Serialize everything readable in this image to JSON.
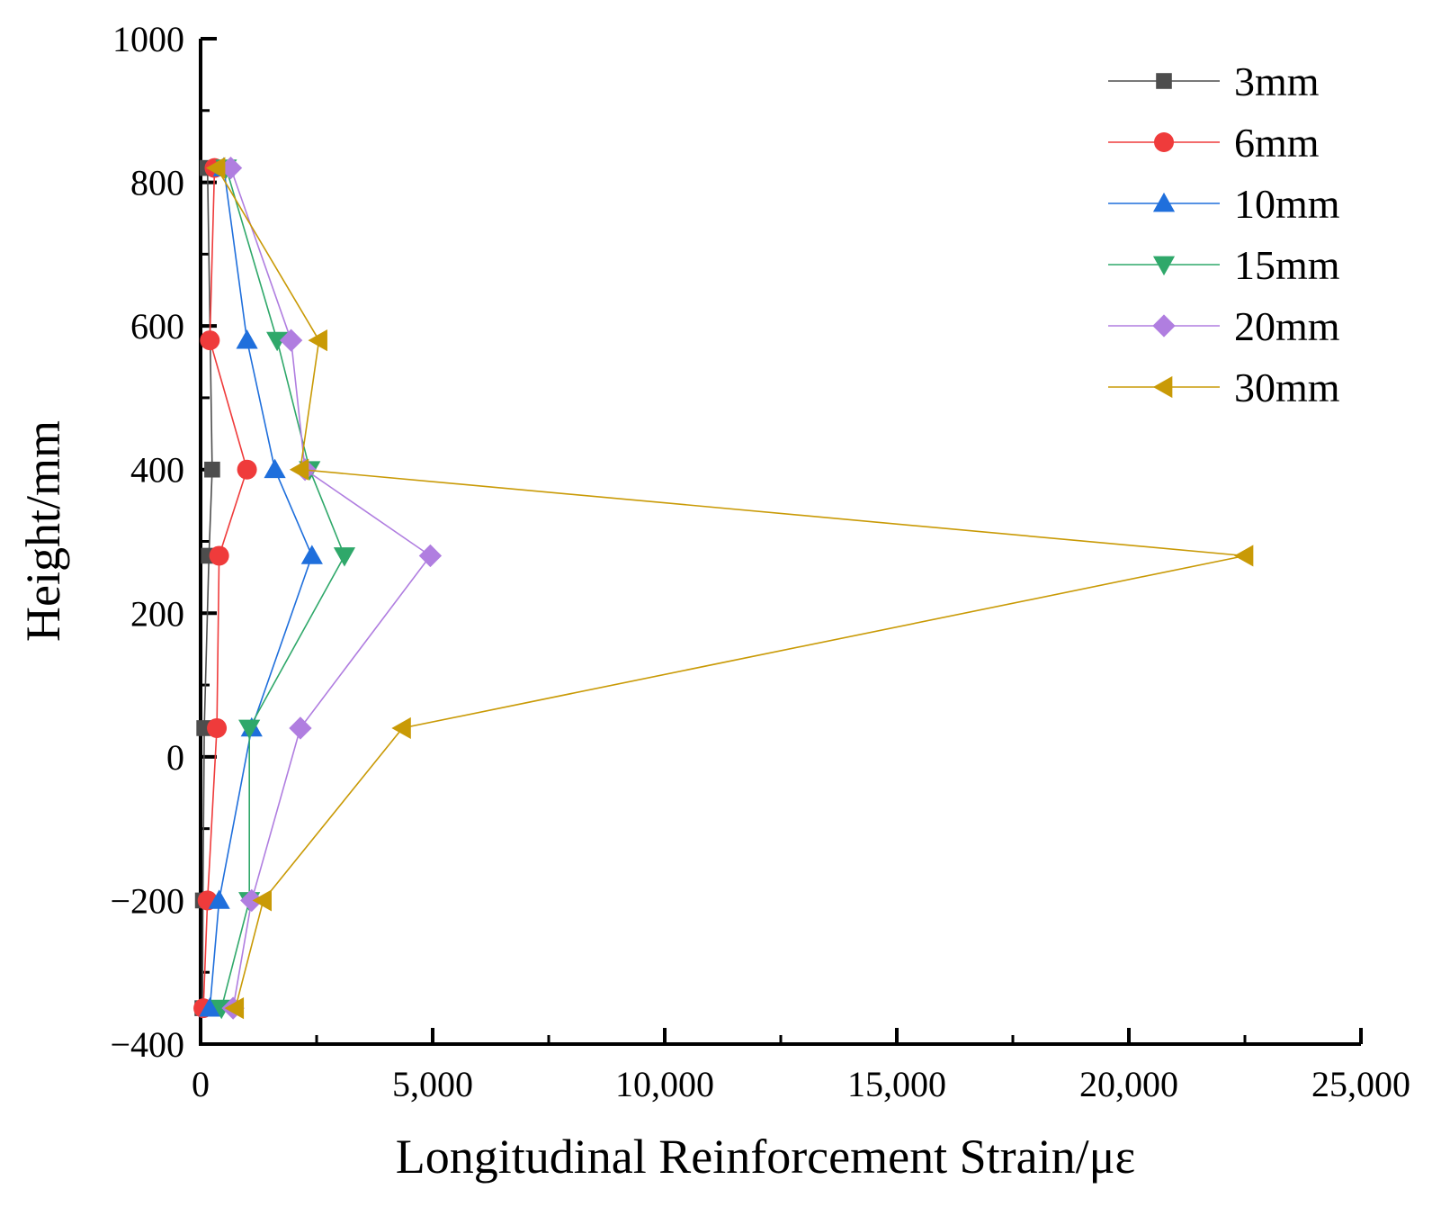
{
  "chart_data": {
    "type": "line",
    "title": "",
    "xlabel": "Longitudinal Reinforcement Strain/με",
    "ylabel": "Height/mm",
    "xlim": [
      0,
      25000
    ],
    "ylim": [
      -400,
      1000
    ],
    "x_ticks": [
      0,
      5000,
      10000,
      15000,
      20000,
      25000
    ],
    "x_tick_labels": [
      "0",
      "5,000",
      "10,000",
      "15,000",
      "20,000",
      "25,000"
    ],
    "y_ticks": [
      -400,
      -200,
      0,
      200,
      400,
      600,
      800,
      1000
    ],
    "y_tick_labels": [
      "−400",
      "−200",
      "0",
      "200",
      "400",
      "600",
      "800",
      "1000"
    ],
    "grid": false,
    "legend_position": "top-right",
    "series": [
      {
        "name": "3mm",
        "color": "#4d4d4d",
        "marker": "square",
        "points": [
          [
            150,
            820
          ],
          [
            250,
            400
          ],
          [
            180,
            280
          ],
          [
            80,
            40
          ],
          [
            50,
            -200
          ],
          [
            40,
            -350
          ]
        ]
      },
      {
        "name": "6mm",
        "color": "#ef3b3b",
        "marker": "circle",
        "points": [
          [
            300,
            820
          ],
          [
            200,
            580
          ],
          [
            1000,
            400
          ],
          [
            400,
            280
          ],
          [
            350,
            40
          ],
          [
            150,
            -200
          ],
          [
            60,
            -350
          ]
        ]
      },
      {
        "name": "10mm",
        "color": "#1f6fdc",
        "marker": "triangle-up",
        "points": [
          [
            500,
            820
          ],
          [
            1000,
            580
          ],
          [
            1600,
            400
          ],
          [
            2400,
            280
          ],
          [
            1100,
            40
          ],
          [
            400,
            -200
          ],
          [
            200,
            -350
          ]
        ]
      },
      {
        "name": "15mm",
        "color": "#2fa86a",
        "marker": "triangle-down",
        "points": [
          [
            550,
            820
          ],
          [
            1650,
            580
          ],
          [
            2350,
            400
          ],
          [
            3100,
            280
          ],
          [
            1050,
            40
          ],
          [
            1050,
            -200
          ],
          [
            450,
            -350
          ]
        ]
      },
      {
        "name": "20mm",
        "color": "#b07ee0",
        "marker": "diamond",
        "points": [
          [
            650,
            820
          ],
          [
            1950,
            580
          ],
          [
            2250,
            400
          ],
          [
            4950,
            280
          ],
          [
            2150,
            40
          ],
          [
            1100,
            -200
          ],
          [
            700,
            -350
          ]
        ]
      },
      {
        "name": "30mm",
        "color": "#c99a06",
        "marker": "triangle-left",
        "points": [
          [
            350,
            820
          ],
          [
            2550,
            580
          ],
          [
            2150,
            400
          ],
          [
            22500,
            280
          ],
          [
            4350,
            40
          ],
          [
            1350,
            -200
          ],
          [
            750,
            -350
          ]
        ]
      }
    ]
  }
}
